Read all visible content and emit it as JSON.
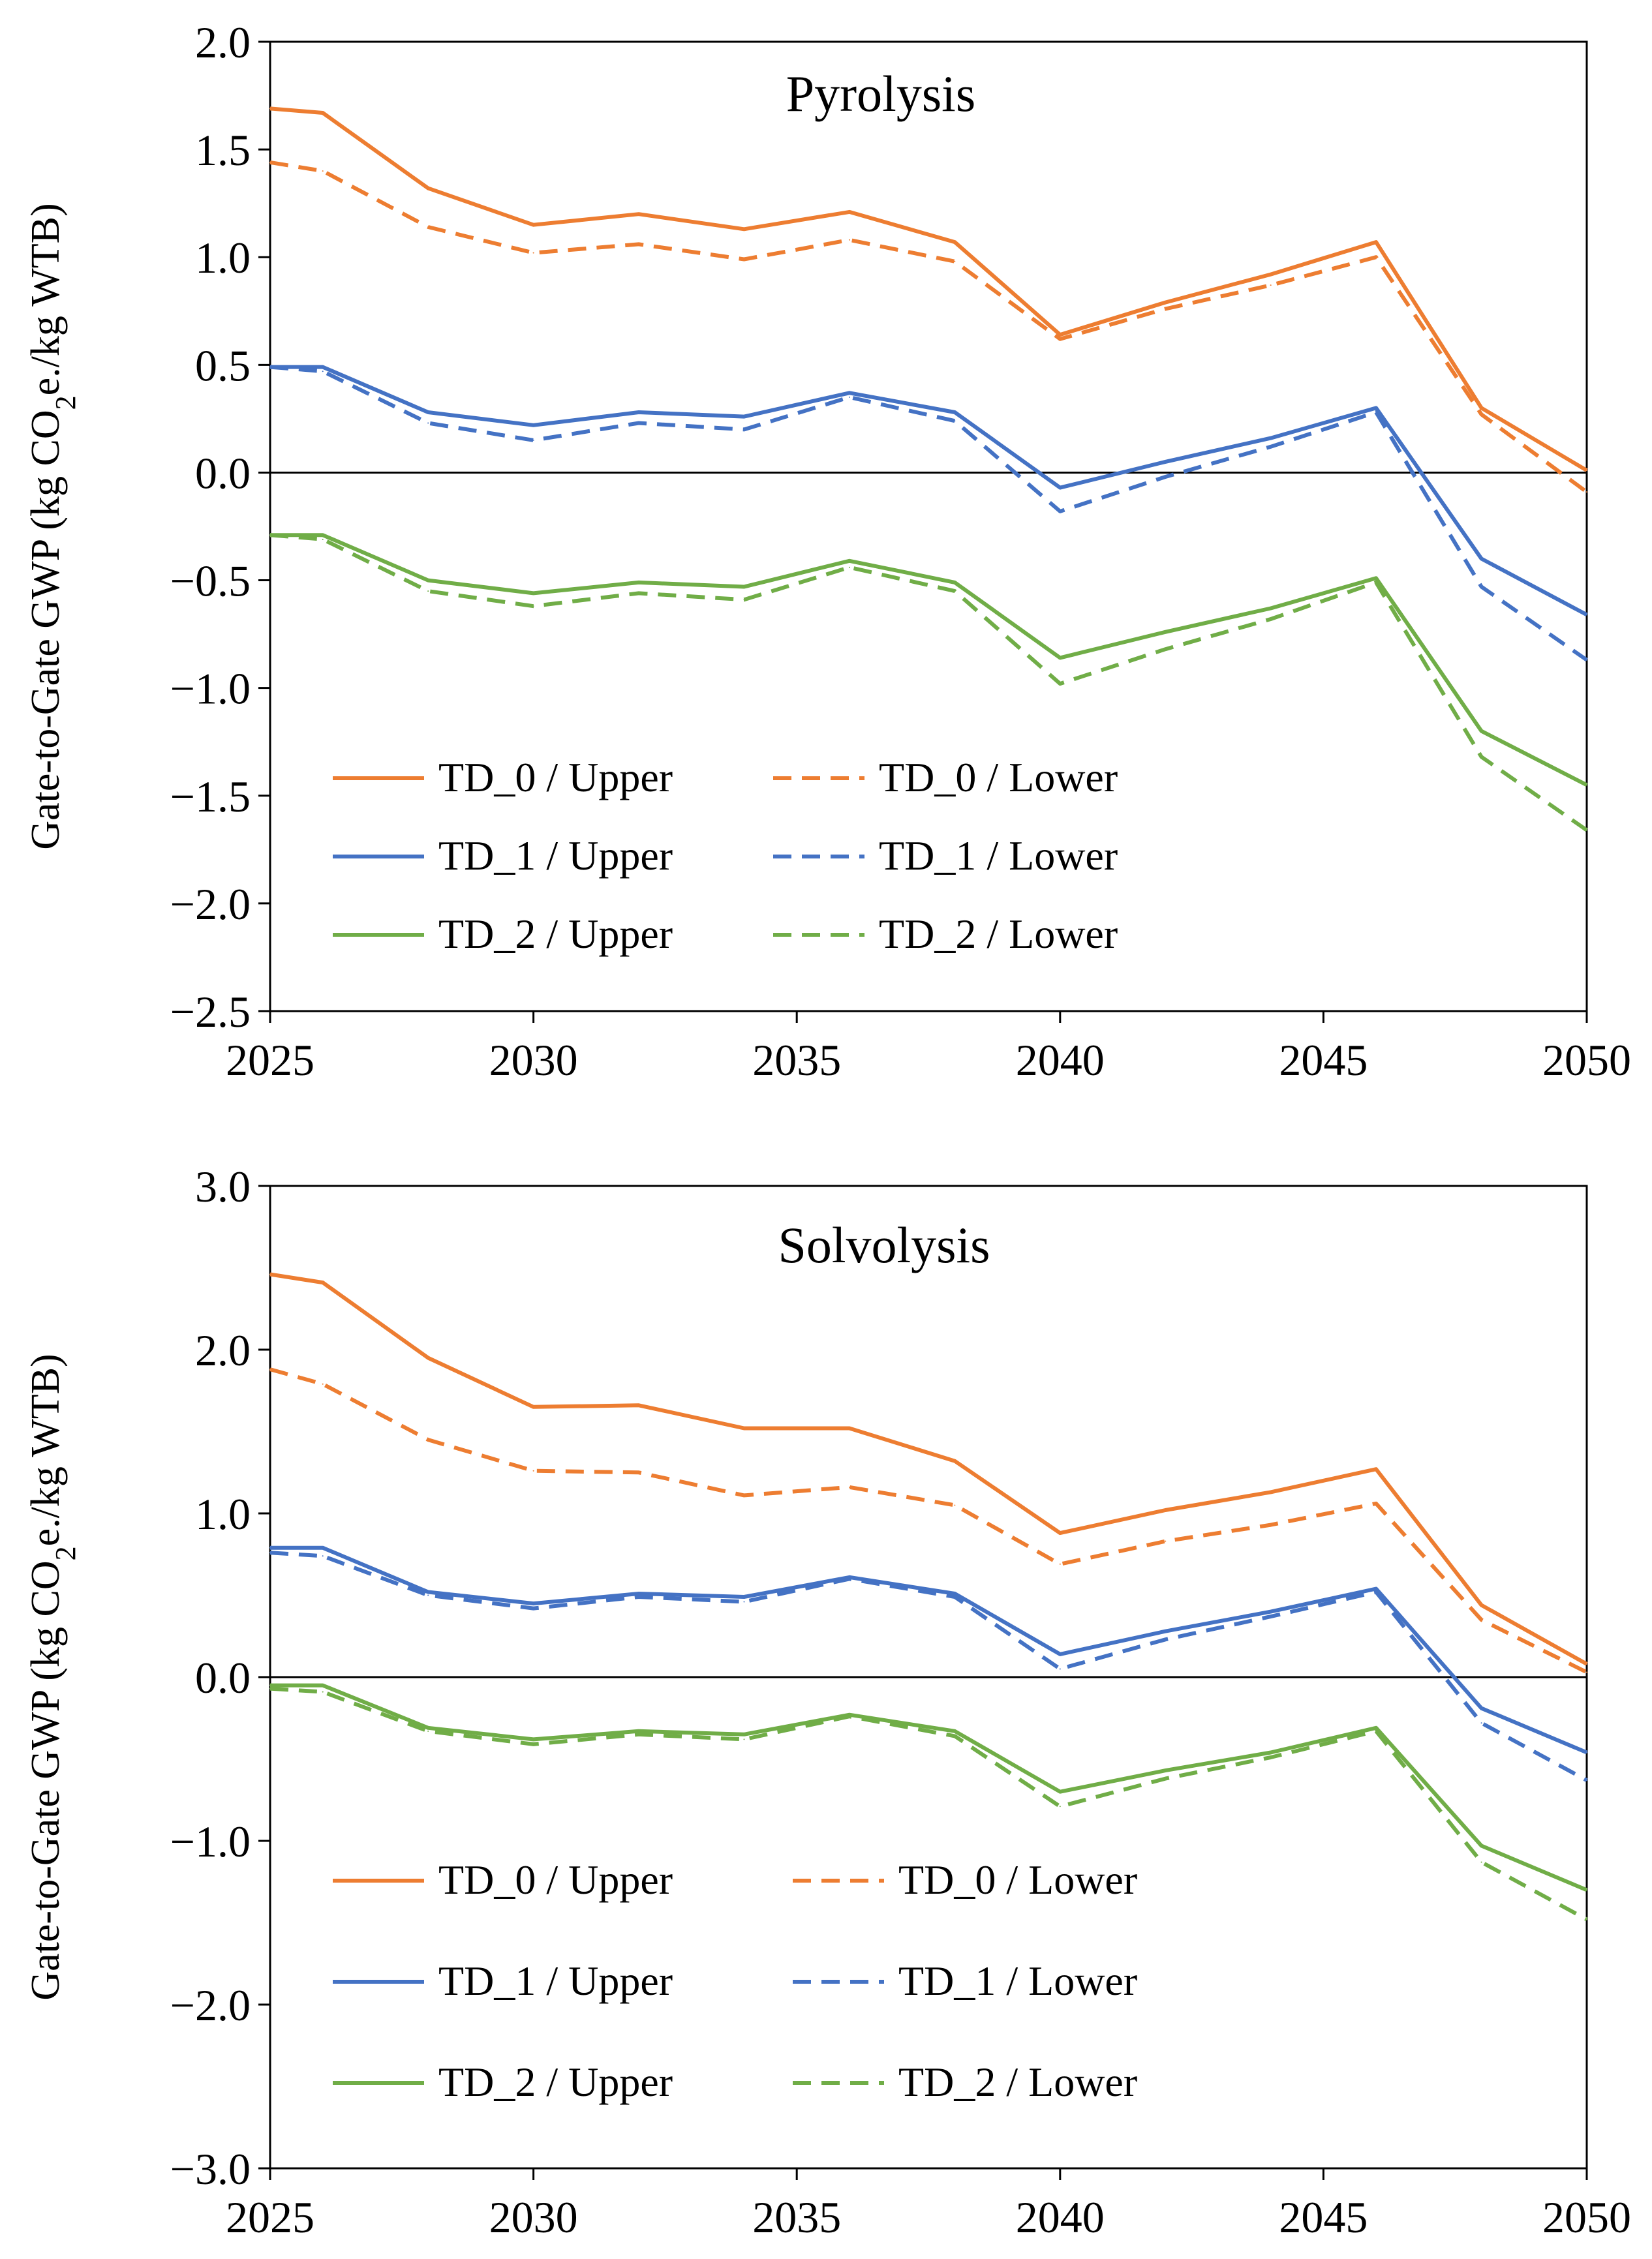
{
  "chart_data": [
    {
      "type": "line",
      "title": "Pyrolysis",
      "xlabel": "",
      "ylabel_parts": [
        "Gate-to-Gate GWP (kg CO",
        "2",
        "e./kg WTB)"
      ],
      "xlim": [
        2025,
        2050
      ],
      "ylim": [
        -2.5,
        2.0
      ],
      "x_ticks": [
        2025,
        2030,
        2035,
        2040,
        2045,
        2050
      ],
      "x_tick_labels": [
        "2025",
        "2030",
        "2035",
        "2040",
        "2045",
        "2050"
      ],
      "y_ticks": [
        2.0,
        1.5,
        1.0,
        0.5,
        0.0,
        -0.5,
        -1.0,
        -1.5,
        -2.0,
        -2.5
      ],
      "y_tick_labels": [
        "2.0",
        "1.5",
        "1.0",
        "0.5",
        "0.0",
        "−0.5",
        "−1.0",
        "−1.5",
        "−2.0",
        "−2.5"
      ],
      "x": [
        2025,
        2026,
        2028,
        2030,
        2032,
        2034,
        2036,
        2038,
        2040,
        2042,
        2044,
        2046,
        2048,
        2050
      ],
      "legend_position": "lower-left",
      "series": [
        {
          "name": "TD_0 / Upper",
          "color": "#ED7D31",
          "dash": "solid",
          "values": [
            1.69,
            1.67,
            1.32,
            1.15,
            1.2,
            1.13,
            1.21,
            1.07,
            0.64,
            0.79,
            0.92,
            1.07,
            0.3,
            0.01
          ]
        },
        {
          "name": "TD_0 / Lower",
          "color": "#ED7D31",
          "dash": "dashed",
          "values": [
            1.44,
            1.4,
            1.14,
            1.02,
            1.06,
            0.99,
            1.08,
            0.98,
            0.62,
            0.76,
            0.87,
            1.0,
            0.27,
            -0.09
          ]
        },
        {
          "name": "TD_1 / Upper",
          "color": "#4472C4",
          "dash": "solid",
          "values": [
            0.49,
            0.49,
            0.28,
            0.22,
            0.28,
            0.26,
            0.37,
            0.28,
            -0.07,
            0.05,
            0.16,
            0.3,
            -0.4,
            -0.66
          ]
        },
        {
          "name": "TD_1 / Lower",
          "color": "#4472C4",
          "dash": "dashed",
          "values": [
            0.49,
            0.47,
            0.23,
            0.15,
            0.23,
            0.2,
            0.35,
            0.24,
            -0.18,
            -0.02,
            0.12,
            0.28,
            -0.53,
            -0.87
          ]
        },
        {
          "name": "TD_2 / Upper",
          "color": "#70AD47",
          "dash": "solid",
          "values": [
            -0.29,
            -0.29,
            -0.5,
            -0.56,
            -0.51,
            -0.53,
            -0.41,
            -0.51,
            -0.86,
            -0.74,
            -0.63,
            -0.49,
            -1.2,
            -1.45
          ]
        },
        {
          "name": "TD_2 / Lower",
          "color": "#70AD47",
          "dash": "dashed",
          "values": [
            -0.29,
            -0.31,
            -0.55,
            -0.62,
            -0.56,
            -0.59,
            -0.44,
            -0.55,
            -0.98,
            -0.82,
            -0.68,
            -0.51,
            -1.32,
            -1.66
          ]
        }
      ]
    },
    {
      "type": "line",
      "title": "Solvolysis",
      "xlabel": "",
      "ylabel_parts": [
        "Gate-to-Gate GWP (kg CO",
        "2",
        "e./kg WTB)"
      ],
      "xlim": [
        2025,
        2050
      ],
      "ylim": [
        -3.0,
        3.0
      ],
      "x_ticks": [
        2025,
        2030,
        2035,
        2040,
        2045,
        2050
      ],
      "x_tick_labels": [
        "2025",
        "2030",
        "2035",
        "2040",
        "2045",
        "2050"
      ],
      "y_ticks": [
        3.0,
        2.0,
        1.0,
        0.0,
        -1.0,
        -2.0,
        -3.0
      ],
      "y_tick_labels": [
        "3.0",
        "2.0",
        "1.0",
        "0.0",
        "−1.0",
        "−2.0",
        "−3.0"
      ],
      "x": [
        2025,
        2026,
        2028,
        2030,
        2032,
        2034,
        2036,
        2038,
        2040,
        2042,
        2044,
        2046,
        2048,
        2050
      ],
      "legend_position": "lower-left",
      "series": [
        {
          "name": "TD_0 / Upper",
          "color": "#ED7D31",
          "dash": "solid",
          "values": [
            2.46,
            2.41,
            1.95,
            1.65,
            1.66,
            1.52,
            1.52,
            1.32,
            0.88,
            1.02,
            1.13,
            1.27,
            0.44,
            0.08
          ]
        },
        {
          "name": "TD_0 / Lower",
          "color": "#ED7D31",
          "dash": "dashed",
          "values": [
            1.88,
            1.79,
            1.45,
            1.26,
            1.25,
            1.11,
            1.16,
            1.05,
            0.69,
            0.83,
            0.93,
            1.06,
            0.35,
            0.03
          ]
        },
        {
          "name": "TD_1 / Upper",
          "color": "#4472C4",
          "dash": "solid",
          "values": [
            0.79,
            0.79,
            0.52,
            0.45,
            0.51,
            0.49,
            0.61,
            0.51,
            0.14,
            0.28,
            0.4,
            0.54,
            -0.19,
            -0.46
          ]
        },
        {
          "name": "TD_1 / Lower",
          "color": "#4472C4",
          "dash": "dashed",
          "values": [
            0.76,
            0.74,
            0.5,
            0.42,
            0.49,
            0.46,
            0.6,
            0.49,
            0.05,
            0.23,
            0.37,
            0.52,
            -0.28,
            -0.63
          ]
        },
        {
          "name": "TD_2 / Upper",
          "color": "#70AD47",
          "dash": "solid",
          "values": [
            -0.05,
            -0.05,
            -0.31,
            -0.38,
            -0.33,
            -0.35,
            -0.23,
            -0.33,
            -0.7,
            -0.57,
            -0.46,
            -0.31,
            -1.03,
            -1.3
          ]
        },
        {
          "name": "TD_2 / Lower",
          "color": "#70AD47",
          "dash": "dashed",
          "values": [
            -0.07,
            -0.09,
            -0.33,
            -0.41,
            -0.35,
            -0.38,
            -0.24,
            -0.36,
            -0.79,
            -0.62,
            -0.49,
            -0.33,
            -1.13,
            -1.48
          ]
        }
      ]
    }
  ]
}
